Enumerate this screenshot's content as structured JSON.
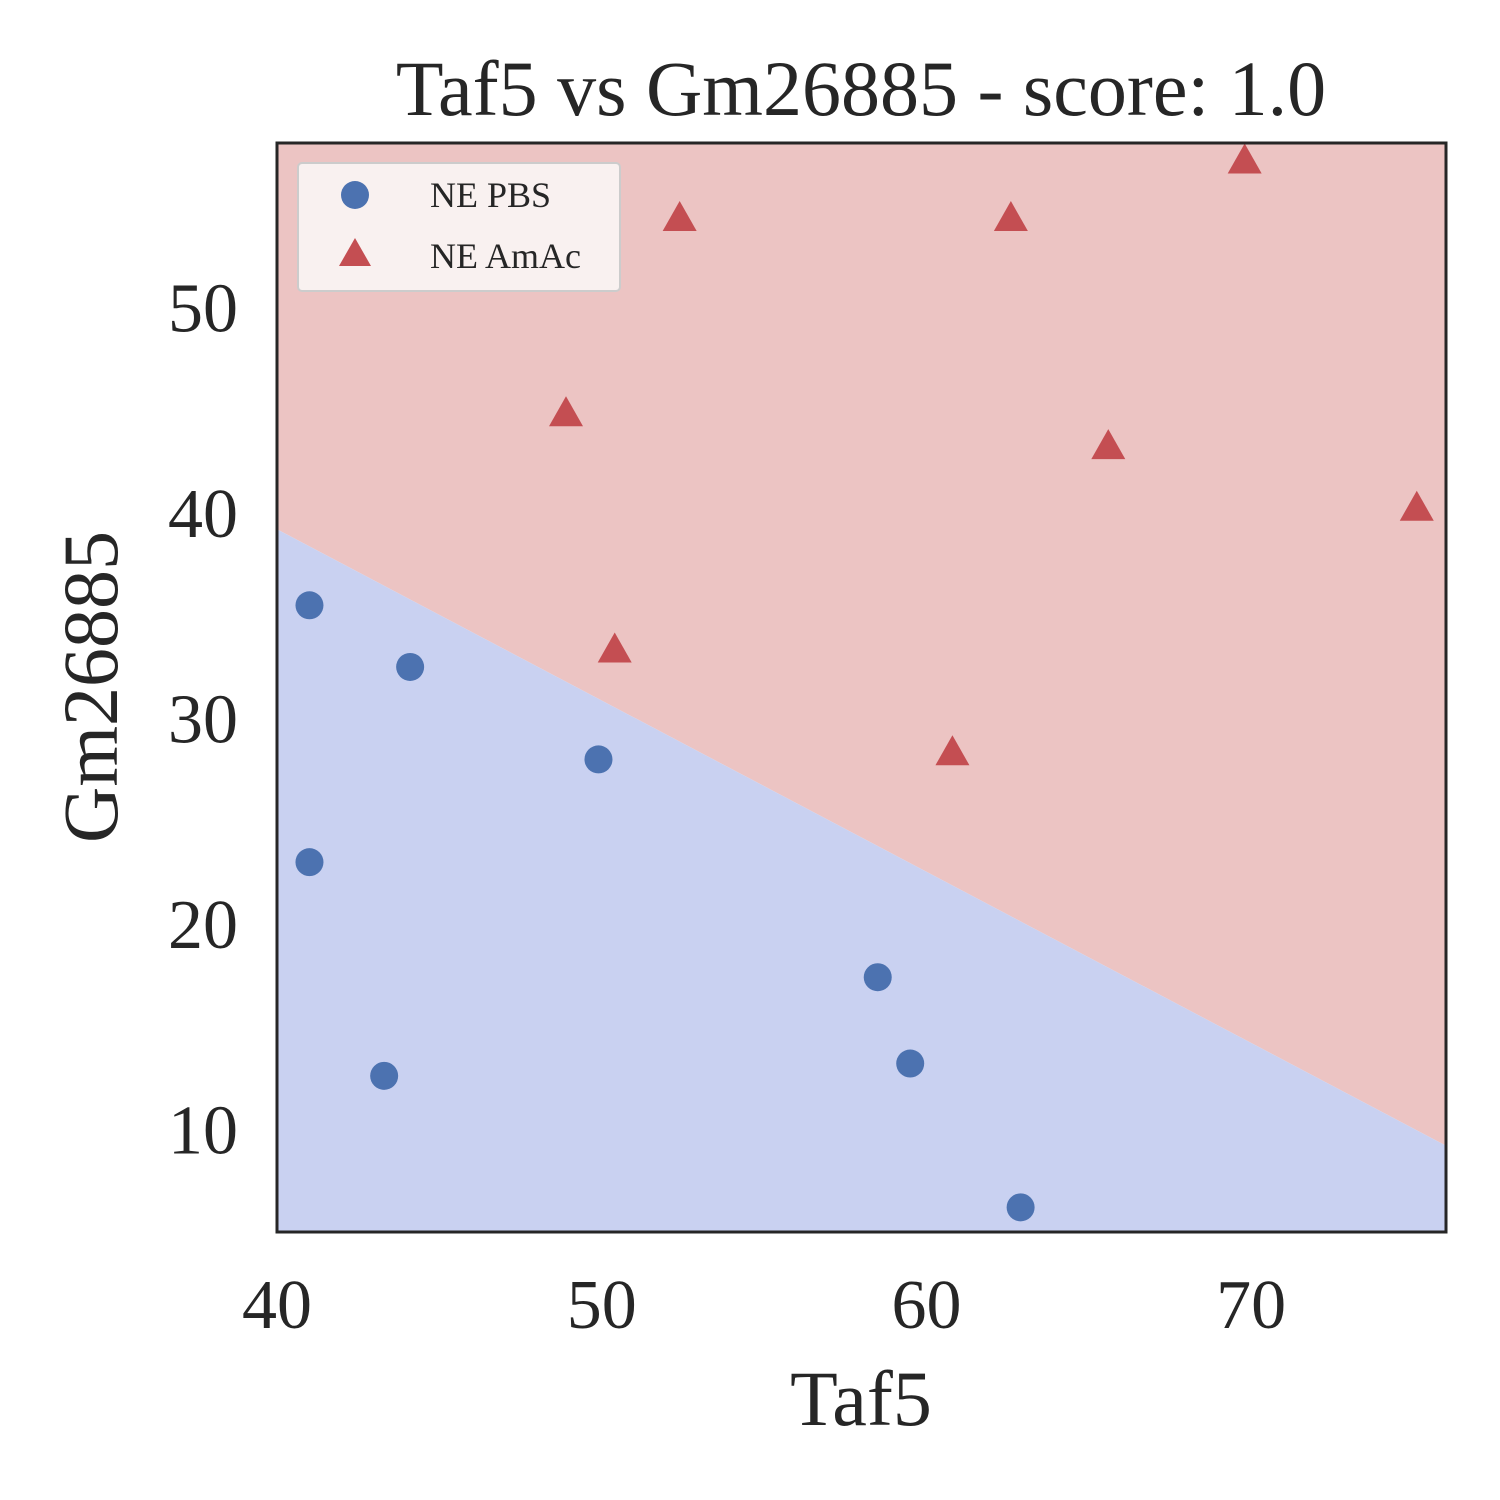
{
  "chart_data": {
    "type": "scatter",
    "title": "Taf5 vs Gm26885 - score: 1.0",
    "xlabel": "Taf5",
    "ylabel": "Gm26885",
    "xlim": [
      40,
      76
    ],
    "ylim": [
      5,
      58
    ],
    "xticks": [
      "40",
      "50",
      "60",
      "70"
    ],
    "yticks": [
      "10",
      "20",
      "30",
      "40",
      "50"
    ],
    "grid": false,
    "legend_position": "upper-left",
    "decision_boundary": {
      "x": [
        40,
        76
      ],
      "y": [
        39.2,
        9.2
      ],
      "below_class": "NE PBS",
      "above_class": "NE AmAc",
      "below_color": "#c9d1f1",
      "above_color": "#ecc4c3"
    },
    "series": [
      {
        "name": "NE PBS",
        "marker": "circle",
        "color": "#4c72b0",
        "points": [
          [
            41.0,
            35.5
          ],
          [
            44.1,
            32.5
          ],
          [
            49.9,
            28.0
          ],
          [
            41.0,
            23.0
          ],
          [
            43.3,
            12.6
          ],
          [
            58.5,
            17.4
          ],
          [
            59.5,
            13.2
          ],
          [
            62.9,
            6.2
          ]
        ]
      },
      {
        "name": "NE AmAc",
        "marker": "triangle",
        "color": "#c44e52",
        "points": [
          [
            48.9,
            44.8
          ],
          [
            50.4,
            33.3
          ],
          [
            52.4,
            54.3
          ],
          [
            62.6,
            54.3
          ],
          [
            60.8,
            28.3
          ],
          [
            65.6,
            43.2
          ],
          [
            69.8,
            57.1
          ],
          [
            75.1,
            40.2
          ]
        ]
      }
    ]
  }
}
